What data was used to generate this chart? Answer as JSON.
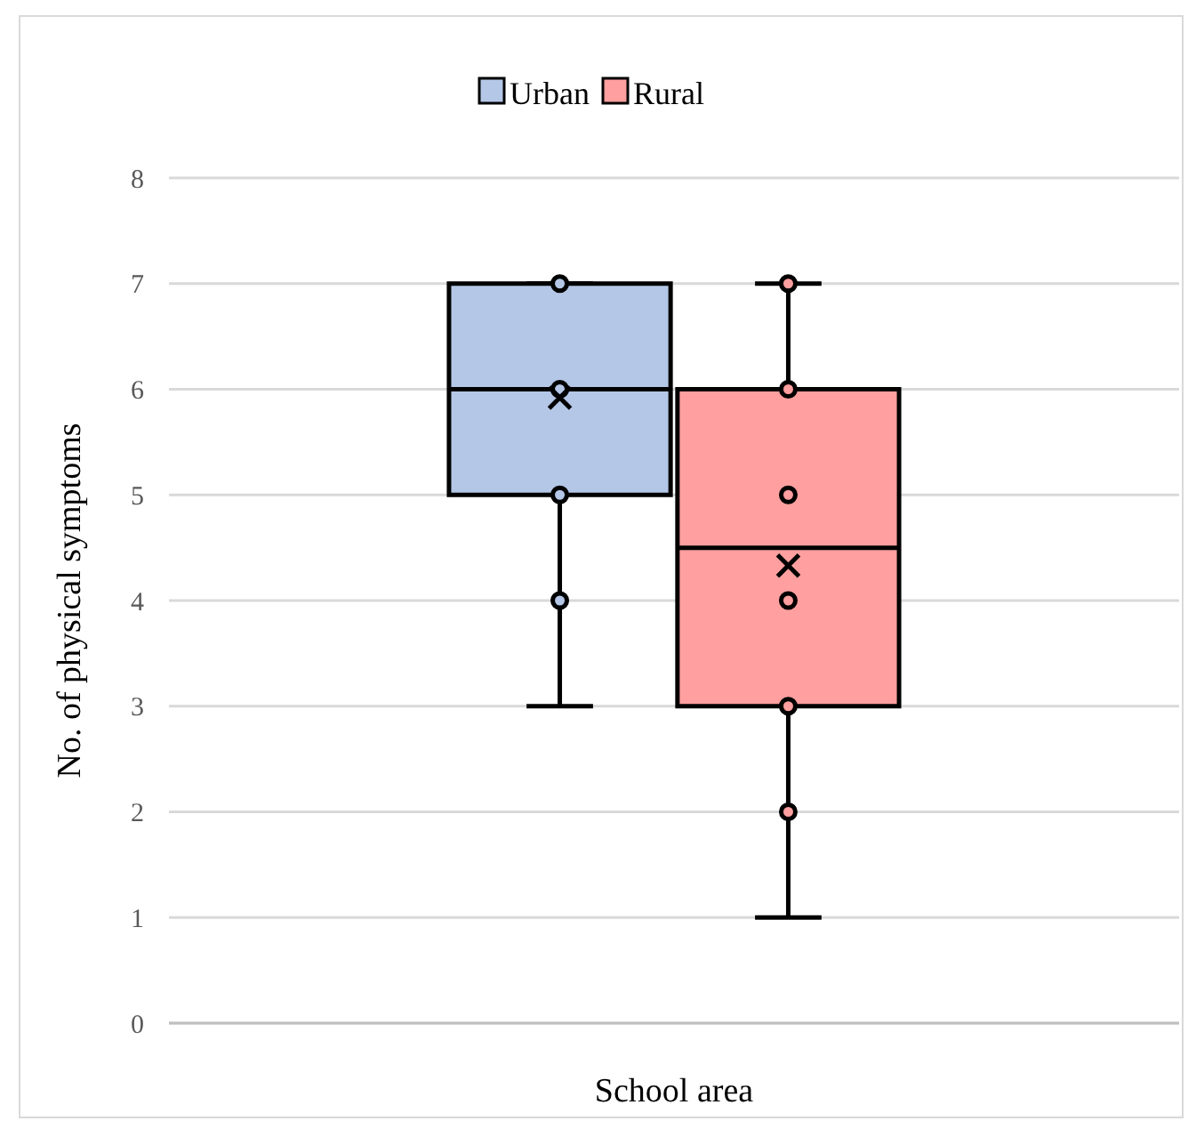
{
  "chart_data": {
    "type": "box",
    "xlabel": "School area",
    "ylabel": "No. of physical symptoms",
    "categories": [
      null
    ],
    "ylim": [
      0,
      8
    ],
    "yticks": [
      0,
      1,
      2,
      3,
      4,
      5,
      6,
      7,
      8
    ],
    "grid": "y",
    "legend": "top",
    "series": [
      {
        "name": "Urban",
        "color": "#b4c7e7",
        "boxes": [
          {
            "low": 3,
            "q1": 5,
            "median": 6,
            "q3": 7,
            "high": 7,
            "mean": 5.92,
            "outliers": [
              7,
              6,
              5,
              4
            ]
          }
        ]
      },
      {
        "name": "Rural",
        "color": "#ff9f9f",
        "boxes": [
          {
            "low": 1,
            "q1": 3,
            "median": 4.5,
            "q3": 6,
            "high": 7,
            "mean": 4.33,
            "outliers": [
              7,
              6,
              5,
              4,
              3,
              2
            ]
          }
        ]
      }
    ]
  }
}
